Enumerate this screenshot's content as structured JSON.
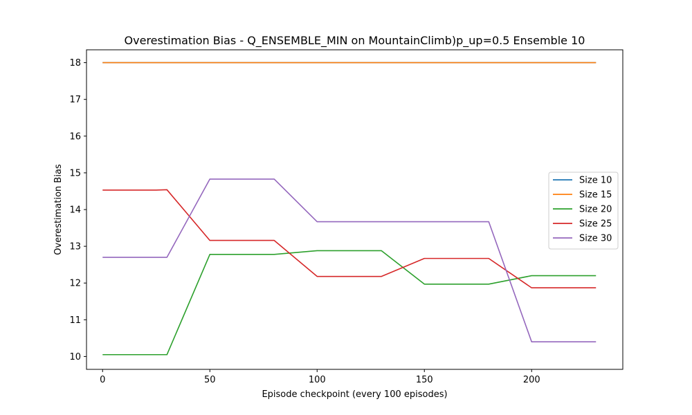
{
  "chart_data": {
    "type": "line",
    "title": "Overestimation Bias - Q_ENSEMBLE_MIN on MountainClimb)p_up=0.5 Ensemble 10",
    "xlabel": "Episode checkpoint (every 100 episodes)",
    "ylabel": "Overestimation Bias",
    "xlim": [
      -7.5,
      242.5
    ],
    "ylim": [
      9.65,
      18.35
    ],
    "xticks": [
      0,
      50,
      100,
      150,
      200
    ],
    "yticks": [
      10,
      11,
      12,
      13,
      14,
      15,
      16,
      17,
      18
    ],
    "grid": false,
    "legend_position": "center-right",
    "series": [
      {
        "name": "Size 10",
        "color": "#1f77b4",
        "x": [
          0,
          230
        ],
        "y": [
          18,
          18
        ]
      },
      {
        "name": "Size 15",
        "color": "#ff7f0e",
        "x": [
          0,
          230
        ],
        "y": [
          18,
          18
        ]
      },
      {
        "name": "Size 20",
        "color": "#2ca02c",
        "x": [
          0,
          30,
          50,
          80,
          100,
          130,
          150,
          180,
          200,
          230
        ],
        "y": [
          10.05,
          10.05,
          12.78,
          12.78,
          12.88,
          12.88,
          11.97,
          11.97,
          12.2,
          12.2
        ]
      },
      {
        "name": "Size 25",
        "color": "#d62728",
        "x": [
          0,
          25,
          30,
          50,
          80,
          100,
          130,
          150,
          180,
          200,
          230
        ],
        "y": [
          14.53,
          14.53,
          14.54,
          13.16,
          13.16,
          12.18,
          12.18,
          12.67,
          12.67,
          11.87,
          11.87
        ]
      },
      {
        "name": "Size 30",
        "color": "#9467bd",
        "x": [
          0,
          30,
          50,
          80,
          100,
          130,
          150,
          180,
          200,
          230
        ],
        "y": [
          12.7,
          12.7,
          14.83,
          14.83,
          13.67,
          13.67,
          13.67,
          13.67,
          10.4,
          10.4
        ]
      }
    ]
  }
}
